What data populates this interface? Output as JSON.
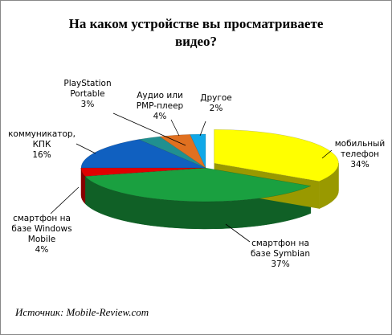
{
  "chart_data": {
    "type": "pie3d",
    "title": "На каком устройстве вы просматриваете видео?",
    "source": "Источник: Mobile-Review.com",
    "categories": [
      "мобильный телефон",
      "смартфон на базе Symbian",
      "смартфон на базе Windows Mobile",
      "коммуникатор, КПК",
      "PlayStation Portable",
      "Аудио или PMP-плеер",
      "Другое"
    ],
    "values": [
      34,
      37,
      4,
      16,
      3,
      4,
      2
    ],
    "value_labels": [
      "34%",
      "37%",
      "4%",
      "16%",
      "3%",
      "4%",
      "2%"
    ],
    "colors": [
      "#ffff00",
      "#1aa040",
      "#e00000",
      "#1060c0",
      "#209090",
      "#e07020",
      "#10a8e8"
    ]
  }
}
